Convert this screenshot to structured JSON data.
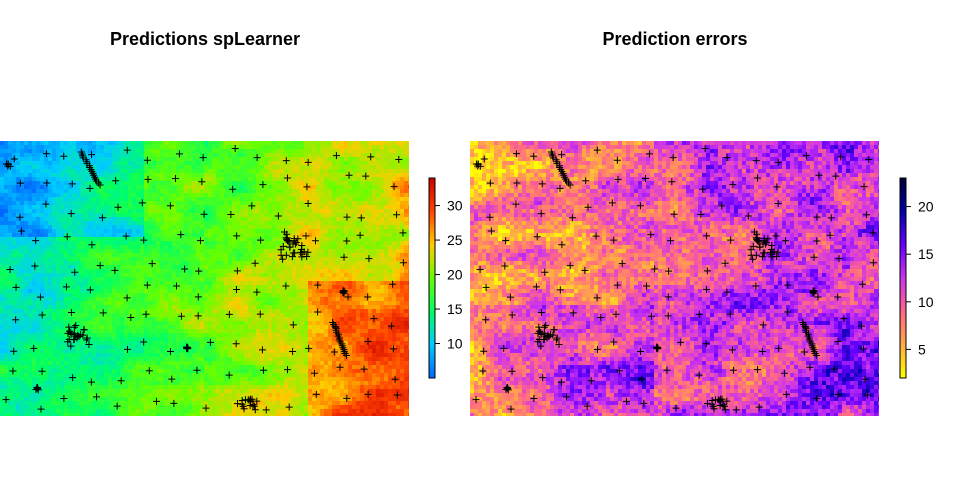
{
  "chart_data": [
    {
      "type": "heatmap",
      "title": "Predictions spLearner",
      "xlabel": "",
      "ylabel": "",
      "grid": false,
      "legend": "right",
      "colorbar": {
        "palette": [
          "#0066ff",
          "#00ccff",
          "#00ff66",
          "#66ff00",
          "#ffcc00",
          "#ff4400",
          "#cc0000"
        ],
        "range": [
          5,
          34
        ],
        "ticks": [
          10,
          15,
          20,
          25,
          30
        ],
        "tick_labels": [
          "10",
          "15",
          "20",
          "25",
          "30"
        ]
      },
      "value_trend": "low values (blue/cyan) in the upper-left and centre-left, higher values (green to yellow/orange) toward the right and lower-right edges",
      "sample_points": "black plus markers on a regular grid, with dense clusters"
    },
    {
      "type": "heatmap",
      "title": "Prediction errors",
      "xlabel": "",
      "ylabel": "",
      "grid": false,
      "legend": "right",
      "colorbar": {
        "palette": [
          "#ffff00",
          "#ffaa44",
          "#ff6688",
          "#cc33ee",
          "#6600ff",
          "#0000aa",
          "#000033"
        ],
        "range": [
          2,
          23
        ],
        "ticks": [
          5,
          10,
          15,
          20
        ],
        "tick_labels": [
          "5",
          "10",
          "15",
          "20"
        ]
      },
      "value_trend": "low errors (yellow/orange) over most of the area, higher errors (magenta to blue) on the right and along the lower-left margin",
      "sample_points": "black plus markers on a regular grid, with dense clusters"
    }
  ]
}
